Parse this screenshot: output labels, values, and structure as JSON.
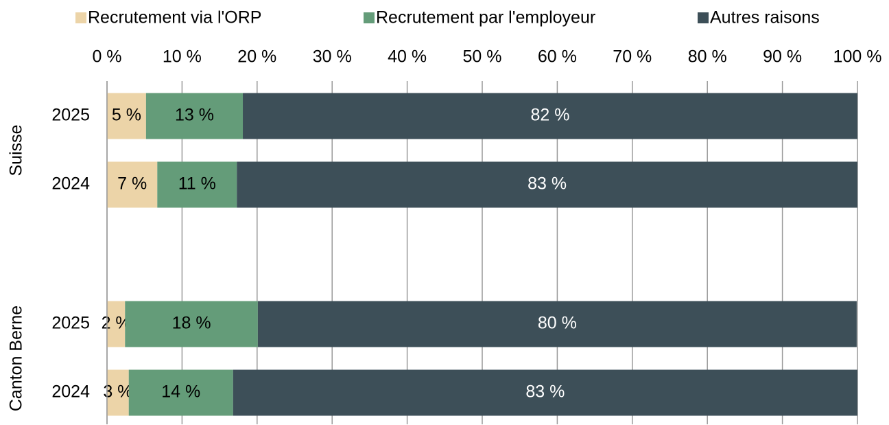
{
  "chart_data": {
    "type": "stacked-barh",
    "categories": [
      "2025",
      "2024",
      "2025",
      "2024"
    ],
    "group_labels": [
      "Suisse",
      "Canton Berne"
    ],
    "series": [
      {
        "name": "Recrutement via l'ORP",
        "color": "#ecd4a8",
        "values": [
          5.2,
          6.7,
          2.4,
          2.9
        ],
        "value_labels": [
          "5 %",
          "7 %",
          "2 %",
          "3 %"
        ],
        "label_color": "#000000"
      },
      {
        "name": "Recrutement par l'employeur",
        "color": "#649c79",
        "values": [
          12.9,
          10.6,
          17.7,
          13.9
        ],
        "value_labels": [
          "13 %",
          "11 %",
          "18 %",
          "14 %"
        ],
        "label_color": "#000000"
      },
      {
        "name": "Autres raisons",
        "color": "#3d4f58",
        "values": [
          81.9,
          82.7,
          79.8,
          83.2
        ],
        "value_labels": [
          "82 %",
          "83 %",
          "80 %",
          "83 %"
        ],
        "label_color": "#ffffff"
      }
    ],
    "xlim": [
      0,
      100
    ],
    "xticks": [
      {
        "value": 0,
        "label": "0 %"
      },
      {
        "value": 10,
        "label": "10 %"
      },
      {
        "value": 20,
        "label": "20 %"
      },
      {
        "value": 30,
        "label": "30 %"
      },
      {
        "value": 40,
        "label": "40 %"
      },
      {
        "value": 50,
        "label": "50 %"
      },
      {
        "value": 60,
        "label": "60 %"
      },
      {
        "value": 70,
        "label": "70 %"
      },
      {
        "value": 80,
        "label": "80 %"
      },
      {
        "value": 90,
        "label": "90 %"
      },
      {
        "value": 100,
        "label": "100 %"
      }
    ],
    "grid": true,
    "legend": "top"
  }
}
